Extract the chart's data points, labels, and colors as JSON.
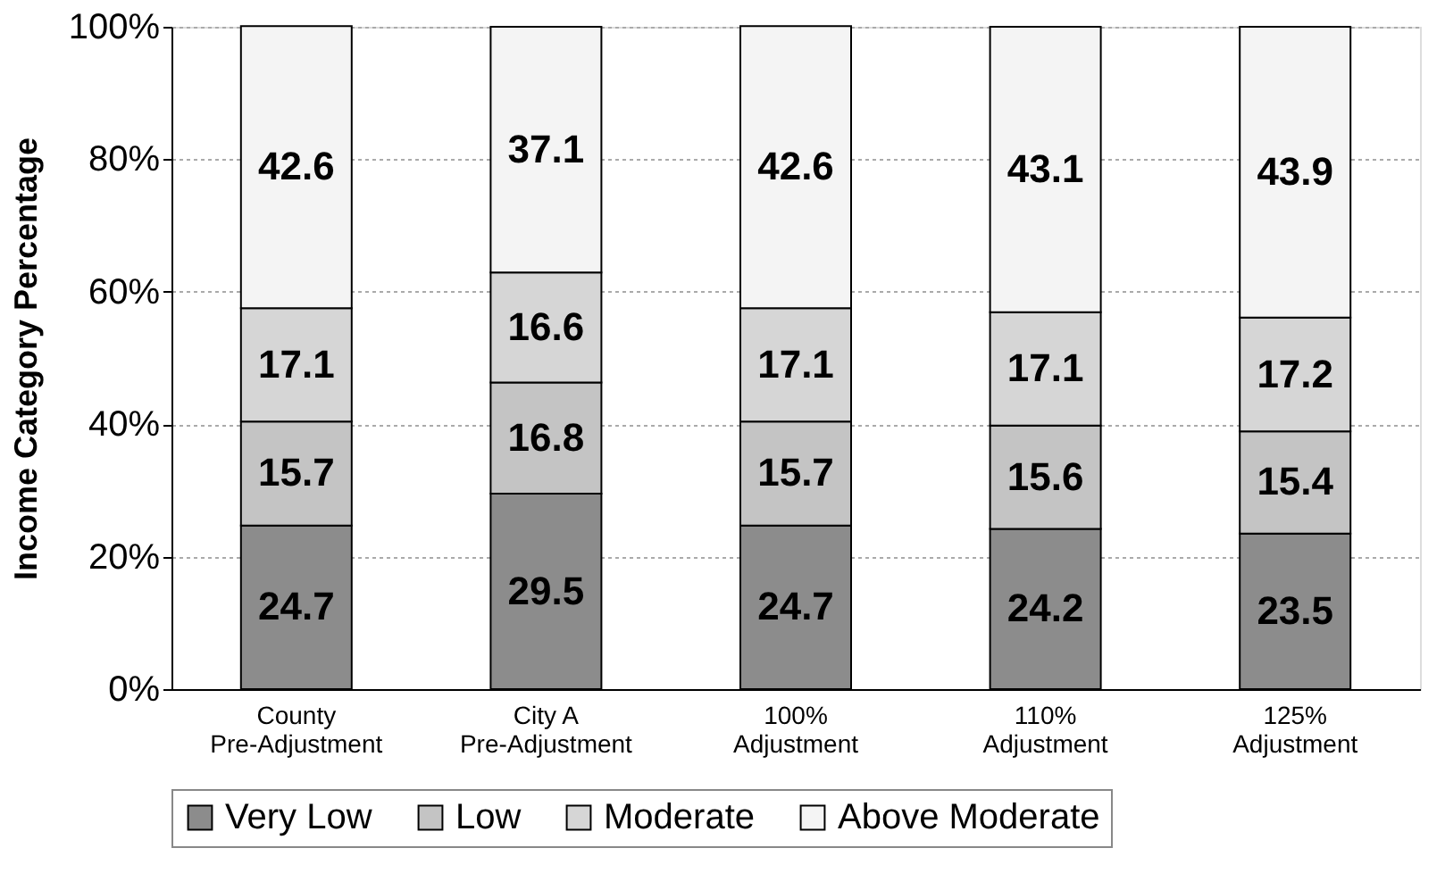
{
  "chart_data": {
    "type": "bar",
    "stacked": true,
    "ylabel": "Income Category Percentage",
    "categories": [
      "County Pre-Adjustment",
      "City A Pre-Adjustment",
      "100% Adjustment",
      "110% Adjustment",
      "125% Adjustment"
    ],
    "series": [
      {
        "name": "Very Low",
        "color": "#8c8c8c",
        "values": [
          24.7,
          29.5,
          24.7,
          24.2,
          23.5
        ]
      },
      {
        "name": "Low",
        "color": "#c4c4c4",
        "values": [
          15.7,
          16.8,
          15.7,
          15.6,
          15.4
        ]
      },
      {
        "name": "Moderate",
        "color": "#d6d6d6",
        "values": [
          17.1,
          16.6,
          17.1,
          17.1,
          17.2
        ]
      },
      {
        "name": "Above Moderate",
        "color": "#f4f4f4",
        "values": [
          42.6,
          37.1,
          42.6,
          43.1,
          43.9
        ]
      }
    ],
    "ylim": [
      0,
      100
    ],
    "yticks": [
      {
        "value": 0,
        "label": "0%"
      },
      {
        "value": 20,
        "label": "20%"
      },
      {
        "value": 40,
        "label": "40%"
      },
      {
        "value": 60,
        "label": "60%"
      },
      {
        "value": 80,
        "label": "80%"
      },
      {
        "value": 100,
        "label": "100%"
      }
    ],
    "grid": "y",
    "legend": "bottom",
    "data_labels": true
  }
}
